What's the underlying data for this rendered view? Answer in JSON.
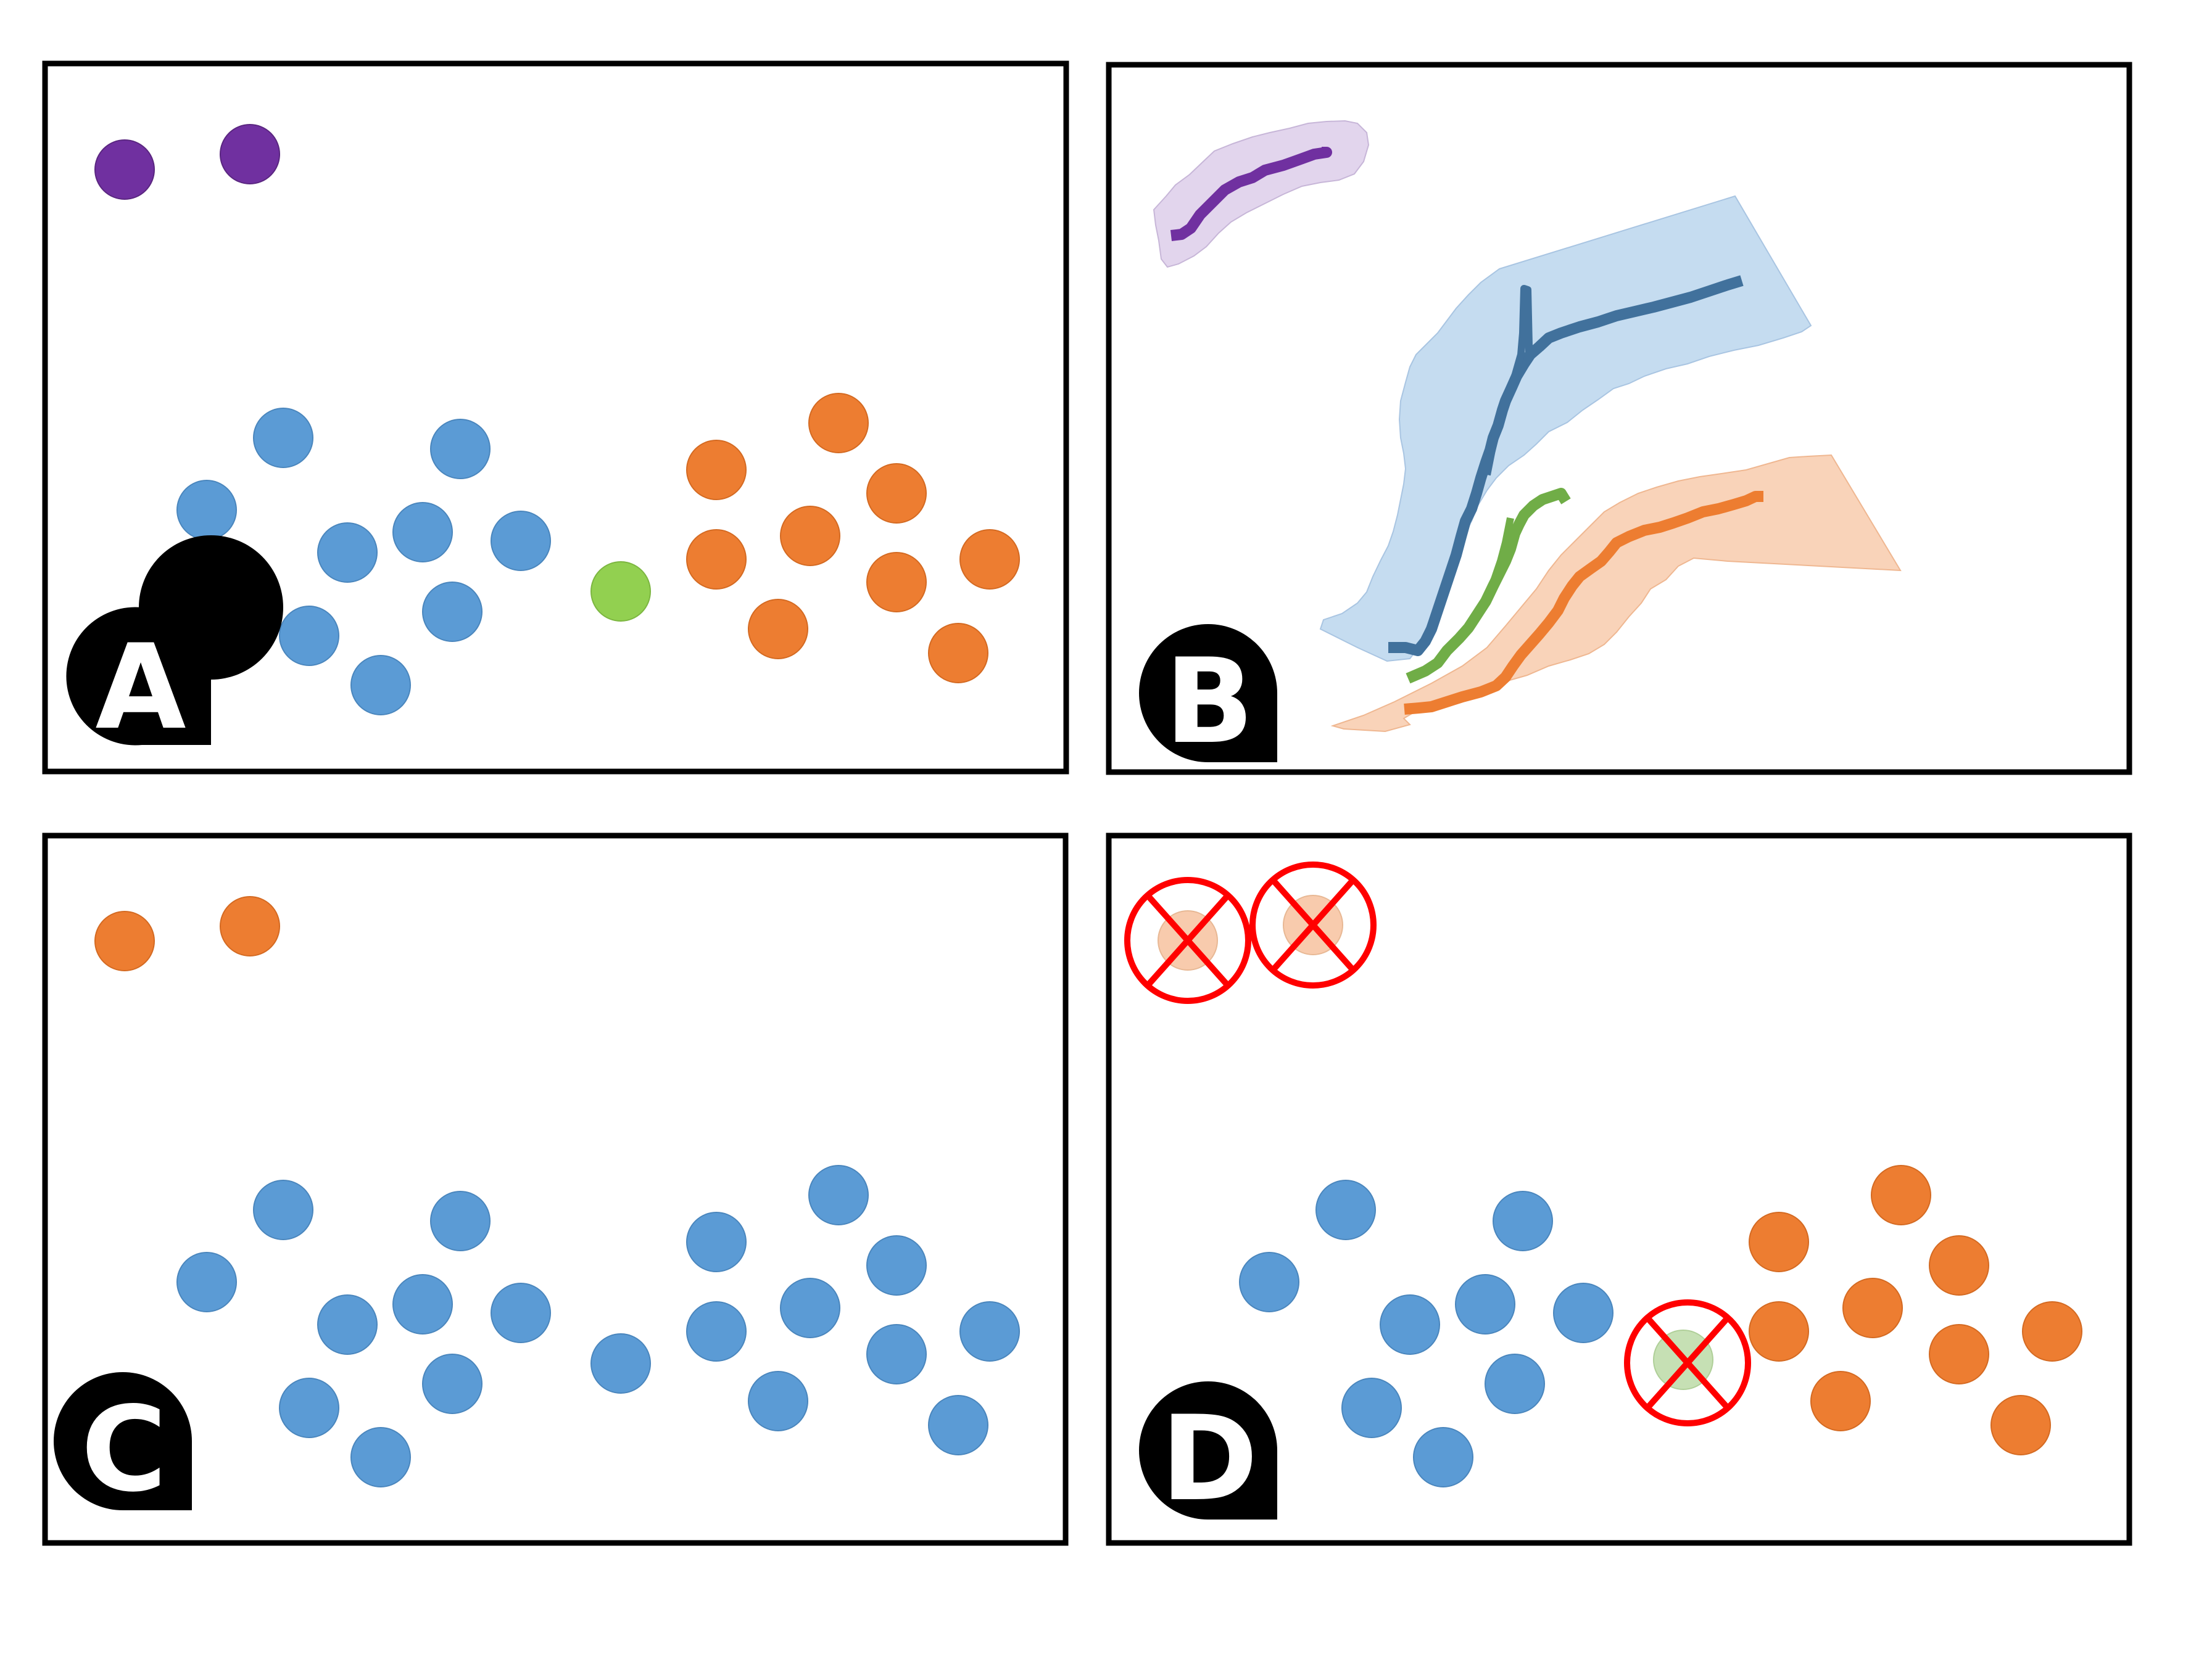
{
  "colors": {
    "purple": "#7030A0",
    "blue": "#5B9BD5",
    "orange": "#ED7D31",
    "green": "#92D050",
    "red": "#FF0000",
    "frame": "#000000",
    "badge": "#000000",
    "badge_text": "#FFFFFF"
  },
  "panels": [
    {
      "id": "A",
      "label": "A"
    },
    {
      "id": "B",
      "label": "B"
    },
    {
      "id": "C",
      "label": "C"
    },
    {
      "id": "D",
      "label": "D"
    }
  ],
  "panel_points": {
    "A": {
      "purple": 2,
      "blue": 10,
      "green": 1,
      "orange": 10
    },
    "C": {
      "orange": 2,
      "blue": 21
    },
    "D": {
      "blue": 10,
      "orange": 10,
      "removed": 3
    }
  },
  "panel_b_regions": [
    {
      "name": "purple-region",
      "color": "purple"
    },
    {
      "name": "blue-region",
      "color": "blue"
    },
    {
      "name": "green-branch",
      "color": "green"
    },
    {
      "name": "orange-region",
      "color": "orange"
    }
  ],
  "icons": {
    "badge": "letter-badge",
    "removed_marker": "red-cross-circle-icon"
  }
}
